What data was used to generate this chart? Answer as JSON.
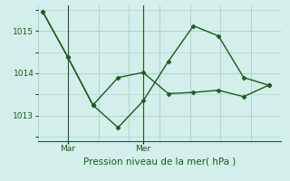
{
  "title": "Pression niveau de la mer( hPa )",
  "background_color": "#d4eeeb",
  "grid_color": "#aed4d0",
  "line_color": "#1a5c1a",
  "ylim": [
    1012.4,
    1015.6
  ],
  "yticks": [
    1013,
    1014,
    1015
  ],
  "day_labels": [
    "Mar",
    "Mer"
  ],
  "series1_x": [
    0,
    1,
    2,
    3,
    4,
    5,
    6,
    7,
    8,
    9
  ],
  "series1_y": [
    1015.45,
    1014.38,
    1013.25,
    1012.72,
    1013.35,
    1014.28,
    1015.12,
    1014.88,
    1013.9,
    1013.72
  ],
  "series2_x": [
    0,
    1,
    2,
    3,
    4,
    5,
    6,
    7,
    8,
    9
  ],
  "series2_y": [
    1015.45,
    1014.38,
    1013.25,
    1013.9,
    1014.02,
    1013.52,
    1013.55,
    1013.6,
    1013.45,
    1013.72
  ],
  "day_vlines": [
    1,
    4
  ],
  "xlim": [
    -0.2,
    9.5
  ],
  "n_xgrid": 10,
  "marker_size": 2.5
}
